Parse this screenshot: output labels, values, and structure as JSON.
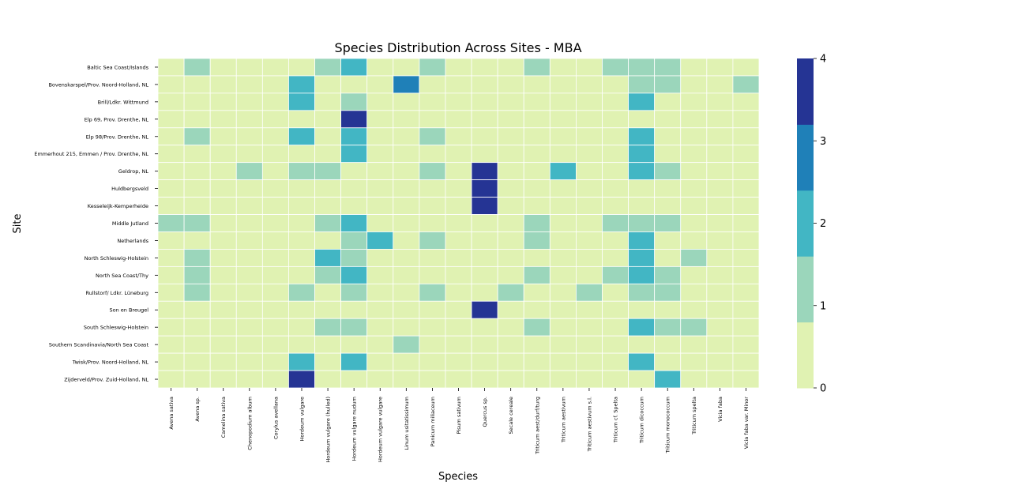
{
  "chart_data": {
    "type": "heatmap",
    "title": "Species Distribution Across Sites - MBA",
    "xlabel": "Species",
    "ylabel": "Site",
    "x": [
      "Avena sativa",
      "Avena sp.",
      "Camelina sativa",
      "Chenopodium album",
      "Corylus avellana",
      "Hordeum vulgare",
      "Hordeum vulgare (hulled)",
      "Hordeum vulgare nudum",
      "Hordeum vulgare vulgare",
      "Linum usitatissimum",
      "Panicum miliaceum",
      "Pisum sativum",
      "Quercus sp.",
      "Secale cereale",
      "Triticum aest/durf/turg",
      "Triticum aestivum",
      "Triticum aestivum s.l.",
      "Triticum cf. Spelta",
      "Triticum dicoccum",
      "Triticum monococcum",
      "Triticum spelta",
      "Vicia faba",
      "Vicia faba var. Minor"
    ],
    "y": [
      "Baltic Sea Coast/Islands",
      "Bovenskarspel/Prov. Noord-Holland, NL",
      "Brill/Ldkr. Wittmund",
      "Elp 69, Prov. Drenthe, NL",
      "Elp 98/Prov. Drenthe, NL",
      "Emmerhout 215, Emmen / Prov. Drenthe, NL",
      "Geldrop, NL",
      "Huldbergsveld",
      "Kesseleijk-Kemperheide",
      "Middle Jutland",
      "Netherlands",
      "North Schleswig-Holstein",
      "North Sea Coast/Thy",
      "Rullstorf/ Ldkr. Lüneburg",
      "Son en Breugel",
      "South Schleswig-Holstein",
      "Southern Scandinavia/North Sea Coast",
      "Twisk/Prov. Noord-Holland, NL",
      "Zijderveld/Prov. Zuid-Holland, NL"
    ],
    "values": [
      [
        0,
        1,
        0,
        0,
        0,
        0,
        1,
        2,
        0,
        0,
        1,
        0,
        0,
        0,
        1,
        0,
        0,
        1,
        1,
        1,
        0,
        0,
        0
      ],
      [
        0,
        0,
        0,
        0,
        0,
        2,
        0,
        0,
        0,
        3,
        0,
        0,
        0,
        0,
        0,
        0,
        0,
        0,
        1,
        1,
        0,
        0,
        1
      ],
      [
        0,
        0,
        0,
        0,
        0,
        2,
        0,
        1,
        0,
        0,
        0,
        0,
        0,
        0,
        0,
        0,
        0,
        0,
        2,
        0,
        0,
        0,
        0
      ],
      [
        0,
        0,
        0,
        0,
        0,
        0,
        0,
        4,
        0,
        0,
        0,
        0,
        0,
        0,
        0,
        0,
        0,
        0,
        0,
        0,
        0,
        0,
        0
      ],
      [
        0,
        1,
        0,
        0,
        0,
        2,
        0,
        2,
        0,
        0,
        1,
        0,
        0,
        0,
        0,
        0,
        0,
        0,
        2,
        0,
        0,
        0,
        0
      ],
      [
        0,
        0,
        0,
        0,
        0,
        0,
        0,
        2,
        0,
        0,
        0,
        0,
        0,
        0,
        0,
        0,
        0,
        0,
        2,
        0,
        0,
        0,
        0
      ],
      [
        0,
        0,
        0,
        1,
        0,
        1,
        1,
        0,
        0,
        0,
        1,
        0,
        4,
        0,
        0,
        2,
        0,
        0,
        2,
        1,
        0,
        0,
        0
      ],
      [
        0,
        0,
        0,
        0,
        0,
        0,
        0,
        0,
        0,
        0,
        0,
        0,
        4,
        0,
        0,
        0,
        0,
        0,
        0,
        0,
        0,
        0,
        0
      ],
      [
        0,
        0,
        0,
        0,
        0,
        0,
        0,
        0,
        0,
        0,
        0,
        0,
        4,
        0,
        0,
        0,
        0,
        0,
        0,
        0,
        0,
        0,
        0
      ],
      [
        1,
        1,
        0,
        0,
        0,
        0,
        1,
        2,
        0,
        0,
        0,
        0,
        0,
        0,
        1,
        0,
        0,
        1,
        1,
        1,
        0,
        0,
        0
      ],
      [
        0,
        0,
        0,
        0,
        0,
        0,
        0,
        1,
        2,
        0,
        1,
        0,
        0,
        0,
        1,
        0,
        0,
        0,
        2,
        0,
        0,
        0,
        0
      ],
      [
        0,
        1,
        0,
        0,
        0,
        0,
        2,
        1,
        0,
        0,
        0,
        0,
        0,
        0,
        0,
        0,
        0,
        0,
        2,
        0,
        1,
        0,
        0
      ],
      [
        0,
        1,
        0,
        0,
        0,
        0,
        1,
        2,
        0,
        0,
        0,
        0,
        0,
        0,
        1,
        0,
        0,
        1,
        2,
        1,
        0,
        0,
        0
      ],
      [
        0,
        1,
        0,
        0,
        0,
        1,
        0,
        1,
        0,
        0,
        1,
        0,
        0,
        1,
        0,
        0,
        1,
        0,
        1,
        1,
        0,
        0,
        0
      ],
      [
        0,
        0,
        0,
        0,
        0,
        0,
        0,
        0,
        0,
        0,
        0,
        0,
        4,
        0,
        0,
        0,
        0,
        0,
        0,
        0,
        0,
        0,
        0
      ],
      [
        0,
        0,
        0,
        0,
        0,
        0,
        1,
        1,
        0,
        0,
        0,
        0,
        0,
        0,
        1,
        0,
        0,
        0,
        2,
        1,
        1,
        0,
        0
      ],
      [
        0,
        0,
        0,
        0,
        0,
        0,
        0,
        0,
        0,
        1,
        0,
        0,
        0,
        0,
        0,
        0,
        0,
        0,
        0,
        0,
        0,
        0,
        0
      ],
      [
        0,
        0,
        0,
        0,
        0,
        2,
        0,
        2,
        0,
        0,
        0,
        0,
        0,
        0,
        0,
        0,
        0,
        0,
        2,
        0,
        0,
        0,
        0
      ],
      [
        0,
        0,
        0,
        0,
        0,
        4,
        0,
        0,
        0,
        0,
        0,
        0,
        0,
        0,
        0,
        0,
        0,
        0,
        0,
        2,
        0,
        0,
        0
      ]
    ],
    "colorbar": {
      "min": 0,
      "max": 4,
      "ticks": [
        "0",
        "1",
        "2",
        "3",
        "4"
      ],
      "colors": [
        "#e0f2b2",
        "#9bd6bb",
        "#42b6c4",
        "#1f80b8",
        "#253494"
      ]
    },
    "grid": false,
    "legend": "colorbar-right"
  }
}
